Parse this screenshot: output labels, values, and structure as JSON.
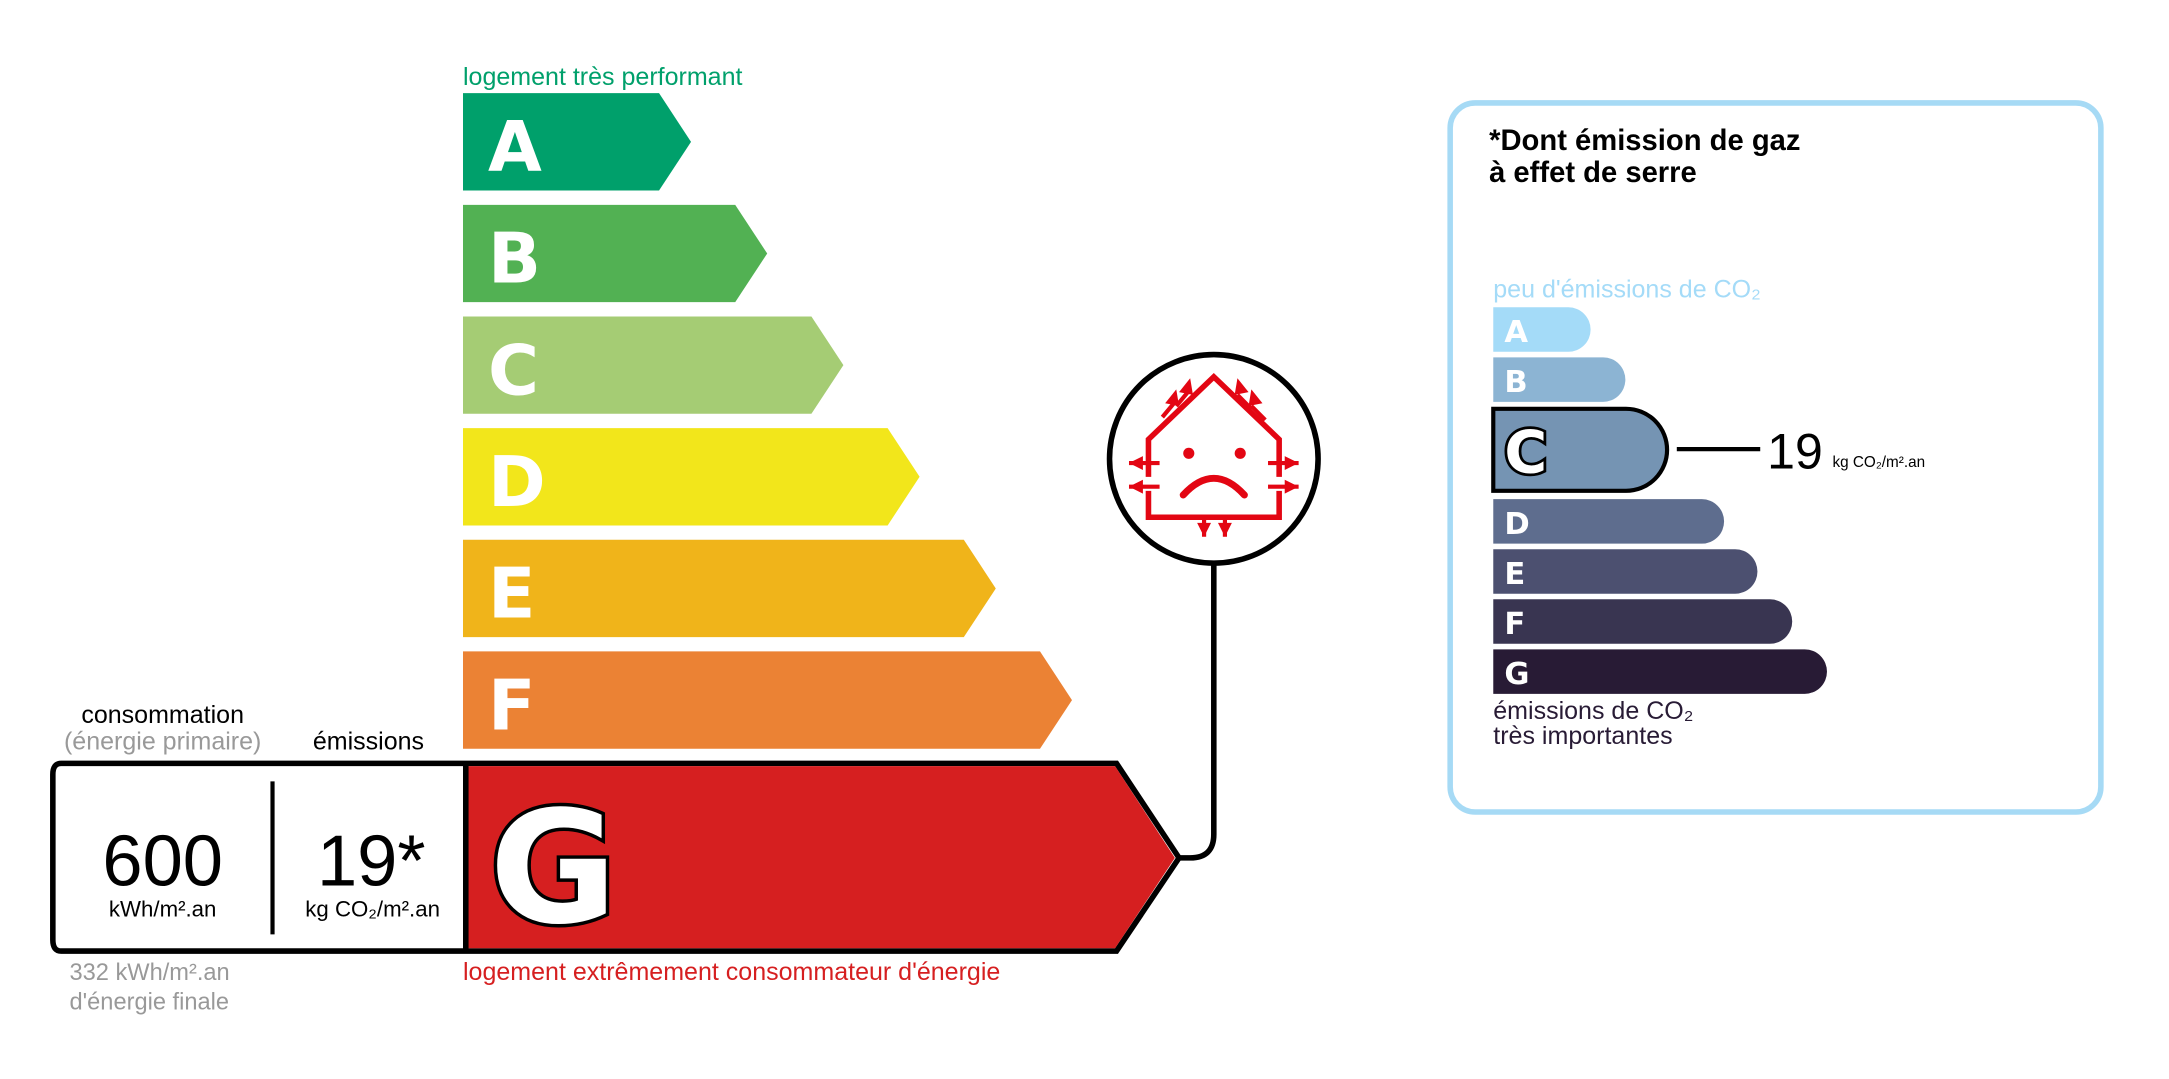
{
  "energy": {
    "top_label": "logement très performant",
    "bottom_label": "logement extrêmement consommateur d'énergie",
    "classes": [
      {
        "letter": "A",
        "color": "#00a06b"
      },
      {
        "letter": "B",
        "color": "#52b153"
      },
      {
        "letter": "C",
        "color": "#a5cc74"
      },
      {
        "letter": "D",
        "color": "#f2e61b"
      },
      {
        "letter": "E",
        "color": "#f0b41a"
      },
      {
        "letter": "F",
        "color": "#eb8234"
      },
      {
        "letter": "G",
        "color": "#d61f20"
      }
    ],
    "current_class": "G",
    "consumption_label": "consommation",
    "consumption_sub": "(énergie primaire)",
    "emissions_label": "émissions",
    "consumption_value": "600",
    "consumption_unit": "kWh/m².an",
    "emissions_value": "19*",
    "emissions_unit": "kg CO₂/m².an",
    "final_energy_line1": "332 kWh/m².an",
    "final_energy_line2": "d'énergie finale",
    "badge_icon": "house-heat-loss-sad-icon",
    "badge_color": "#e30613"
  },
  "ges": {
    "title_line1": "*Dont émission de gaz",
    "title_line2": "à effet de serre",
    "top_label": "peu d'émissions de CO₂",
    "bottom_label_line1": "émissions de CO₂",
    "bottom_label_line2": "très importantes",
    "border_color": "#a6daf5",
    "classes": [
      {
        "letter": "A",
        "color": "#a4dbf8"
      },
      {
        "letter": "B",
        "color": "#8cb4d3"
      },
      {
        "letter": "C",
        "color": "#7594b3"
      },
      {
        "letter": "D",
        "color": "#5e6d8e"
      },
      {
        "letter": "E",
        "color": "#4c5070"
      },
      {
        "letter": "F",
        "color": "#393551"
      },
      {
        "letter": "G",
        "color": "#281b35"
      }
    ],
    "current_class": "C",
    "value": "19",
    "unit": "kg CO₂/m².an"
  }
}
